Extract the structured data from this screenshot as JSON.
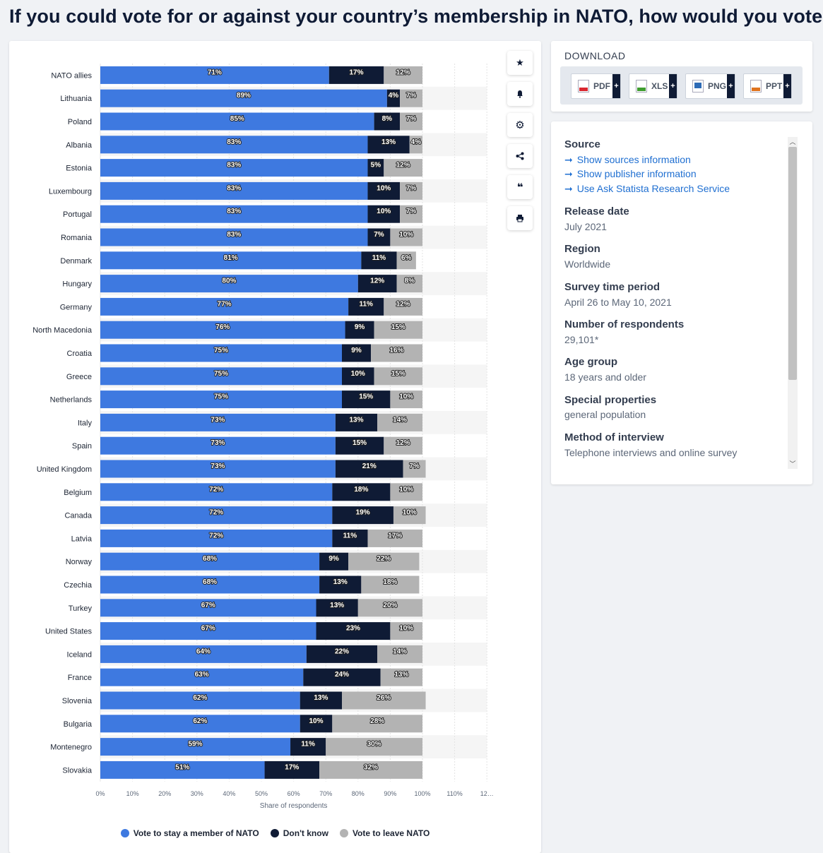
{
  "page": {
    "title": "If you could vote for or against your country’s membership in NATO, how would you vote?"
  },
  "chart_data": {
    "type": "bar",
    "orientation": "horizontal",
    "stacked": true,
    "categories": [
      "NATO allies",
      "Lithuania",
      "Poland",
      "Albania",
      "Estonia",
      "Luxembourg",
      "Portugal",
      "Romania",
      "Denmark",
      "Hungary",
      "Germany",
      "North Macedonia",
      "Croatia",
      "Greece",
      "Netherlands",
      "Italy",
      "Spain",
      "United Kingdom",
      "Belgium",
      "Canada",
      "Latvia",
      "Norway",
      "Czechia",
      "Turkey",
      "United States",
      "Iceland",
      "France",
      "Slovenia",
      "Bulgaria",
      "Montenegro",
      "Slovakia"
    ],
    "series": [
      {
        "name": "Vote to stay a member of NATO",
        "color": "#3e79e0",
        "values": [
          71,
          89,
          85,
          83,
          83,
          83,
          83,
          83,
          81,
          80,
          77,
          76,
          75,
          75,
          75,
          73,
          73,
          73,
          72,
          72,
          72,
          68,
          68,
          67,
          67,
          64,
          63,
          62,
          62,
          59,
          51
        ]
      },
      {
        "name": "Don't know",
        "color": "#0f1b35",
        "values": [
          17,
          4,
          8,
          13,
          5,
          10,
          10,
          7,
          11,
          12,
          11,
          9,
          9,
          10,
          15,
          13,
          15,
          21,
          18,
          19,
          11,
          9,
          13,
          13,
          23,
          22,
          24,
          13,
          10,
          11,
          17
        ]
      },
      {
        "name": "Vote to leave NATO",
        "color": "#b3b3b3",
        "values": [
          12,
          7,
          7,
          4,
          12,
          7,
          7,
          10,
          6,
          8,
          12,
          15,
          16,
          15,
          10,
          14,
          12,
          7,
          10,
          10,
          17,
          22,
          18,
          20,
          10,
          14,
          13,
          26,
          28,
          30,
          32
        ]
      }
    ],
    "x_ticks": [
      "0%",
      "10%",
      "20%",
      "30%",
      "40%",
      "50%",
      "60%",
      "70%",
      "80%",
      "90%",
      "100%",
      "110%",
      "12…"
    ],
    "xlim": [
      0,
      120
    ],
    "xlabel": "Share of respondents",
    "legend_position": "bottom",
    "grid": true
  },
  "toolbar": {
    "buttons": [
      {
        "name": "favorite-button",
        "icon": "star-icon",
        "glyph": "★"
      },
      {
        "name": "notification-button",
        "icon": "bell-icon",
        "glyph": "🔔"
      },
      {
        "name": "settings-button",
        "icon": "gear-icon",
        "glyph": "⚙"
      },
      {
        "name": "share-button",
        "icon": "share-icon",
        "glyph": "⋖"
      },
      {
        "name": "cite-button",
        "icon": "quote-icon",
        "glyph": "❝"
      },
      {
        "name": "print-button",
        "icon": "printer-icon",
        "glyph": "⎙"
      }
    ]
  },
  "download": {
    "title": "DOWNLOAD",
    "buttons": [
      {
        "label": "PDF",
        "color": "#d9262f"
      },
      {
        "label": "XLS",
        "color": "#3f9d2f"
      },
      {
        "label": "PNG",
        "color": "#2d6bb6"
      },
      {
        "label": "PPT",
        "color": "#e0741f"
      }
    ],
    "plus": "+"
  },
  "info": {
    "source_heading": "Source",
    "links": [
      "Show sources information",
      "Show publisher information",
      "Use Ask Statista Research Service"
    ],
    "release_heading": "Release date",
    "release_value": "July 2021",
    "region_heading": "Region",
    "region_value": "Worldwide",
    "period_heading": "Survey time period",
    "period_value": "April 26 to May 10, 2021",
    "respondents_heading": "Number of respondents",
    "respondents_value": "29,101*",
    "age_heading": "Age group",
    "age_value": "18 years and older",
    "special_heading": "Special properties",
    "special_value": "general population",
    "method_heading": "Method of interview",
    "method_value": "Telephone interviews and online survey"
  }
}
